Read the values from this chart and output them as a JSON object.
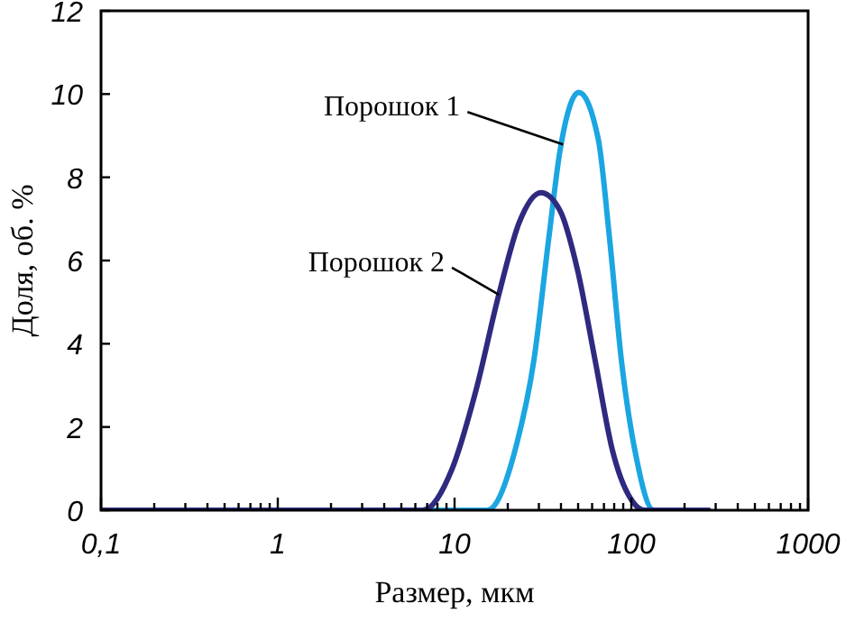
{
  "chart_data": {
    "type": "line",
    "xlabel": "Размер, мкм",
    "ylabel": "Доля, об. %",
    "log": "x",
    "xlim": [
      0.1,
      1000
    ],
    "xticks": [
      {
        "value": 0.1,
        "label": "0,1"
      },
      {
        "value": 0.2,
        "label": null
      },
      {
        "value": 0.3,
        "label": null
      },
      {
        "value": 0.4,
        "label": null
      },
      {
        "value": 0.5,
        "label": null
      },
      {
        "value": 0.6,
        "label": null
      },
      {
        "value": 0.7,
        "label": null
      },
      {
        "value": 0.8,
        "label": null
      },
      {
        "value": 0.9,
        "label": null
      },
      1,
      {
        "value": 2,
        "label": null
      },
      {
        "value": 3,
        "label": null
      },
      {
        "value": 4,
        "label": null
      },
      {
        "value": 5,
        "label": null
      },
      {
        "value": 6,
        "label": null
      },
      {
        "value": 7,
        "label": null
      },
      {
        "value": 8,
        "label": null
      },
      {
        "value": 9,
        "label": null
      },
      10,
      {
        "value": 20,
        "label": null
      },
      {
        "value": 30,
        "label": null
      },
      {
        "value": 40,
        "label": null
      },
      {
        "value": 50,
        "label": null
      },
      {
        "value": 60,
        "label": null
      },
      {
        "value": 70,
        "label": null
      },
      {
        "value": 80,
        "label": null
      },
      {
        "value": 90,
        "label": null
      },
      100,
      {
        "value": 200,
        "label": null
      },
      {
        "value": 300,
        "label": null
      },
      {
        "value": 400,
        "label": null
      },
      {
        "value": 500,
        "label": null
      },
      {
        "value": 600,
        "label": null
      },
      {
        "value": 700,
        "label": null
      },
      {
        "value": 800,
        "label": null
      },
      {
        "value": 900,
        "label": null
      },
      1000
    ],
    "ylim": [
      0,
      12
    ],
    "yticks": [
      0,
      2,
      4,
      6,
      8,
      10,
      12
    ],
    "grid": false,
    "marker": "none",
    "line_style": "solid",
    "series": [
      {
        "color": "#1ba6e1",
        "x": [
          0.1,
          15.3,
          22.4,
          28.1,
          34.0,
          39.5,
          50.5,
          64.9,
          75.5,
          87.9,
          106.4,
          133.6,
          273
        ],
        "values": [
          0,
          0,
          1.57,
          3.6,
          6.48,
          8.64,
          10.04,
          8.93,
          6.48,
          3.6,
          1.29,
          0,
          0
        ]
      },
      {
        "color": "#2e2a80",
        "x": [
          0.1,
          6.6,
          9.7,
          13.2,
          17.8,
          23.2,
          30.8,
          39.5,
          49.7,
          62.4,
          78.3,
          102,
          119,
          273
        ],
        "values": [
          0,
          0,
          1.0,
          2.87,
          5.18,
          6.91,
          7.63,
          7.2,
          5.76,
          3.6,
          1.43,
          0.2,
          0,
          0
        ]
      }
    ],
    "annotations": [
      {
        "text": "Порошок 1",
        "x": 41.1,
        "y": 8.79
      },
      {
        "text": "Порошок 2",
        "x": 17.8,
        "y": 5.18
      }
    ]
  }
}
